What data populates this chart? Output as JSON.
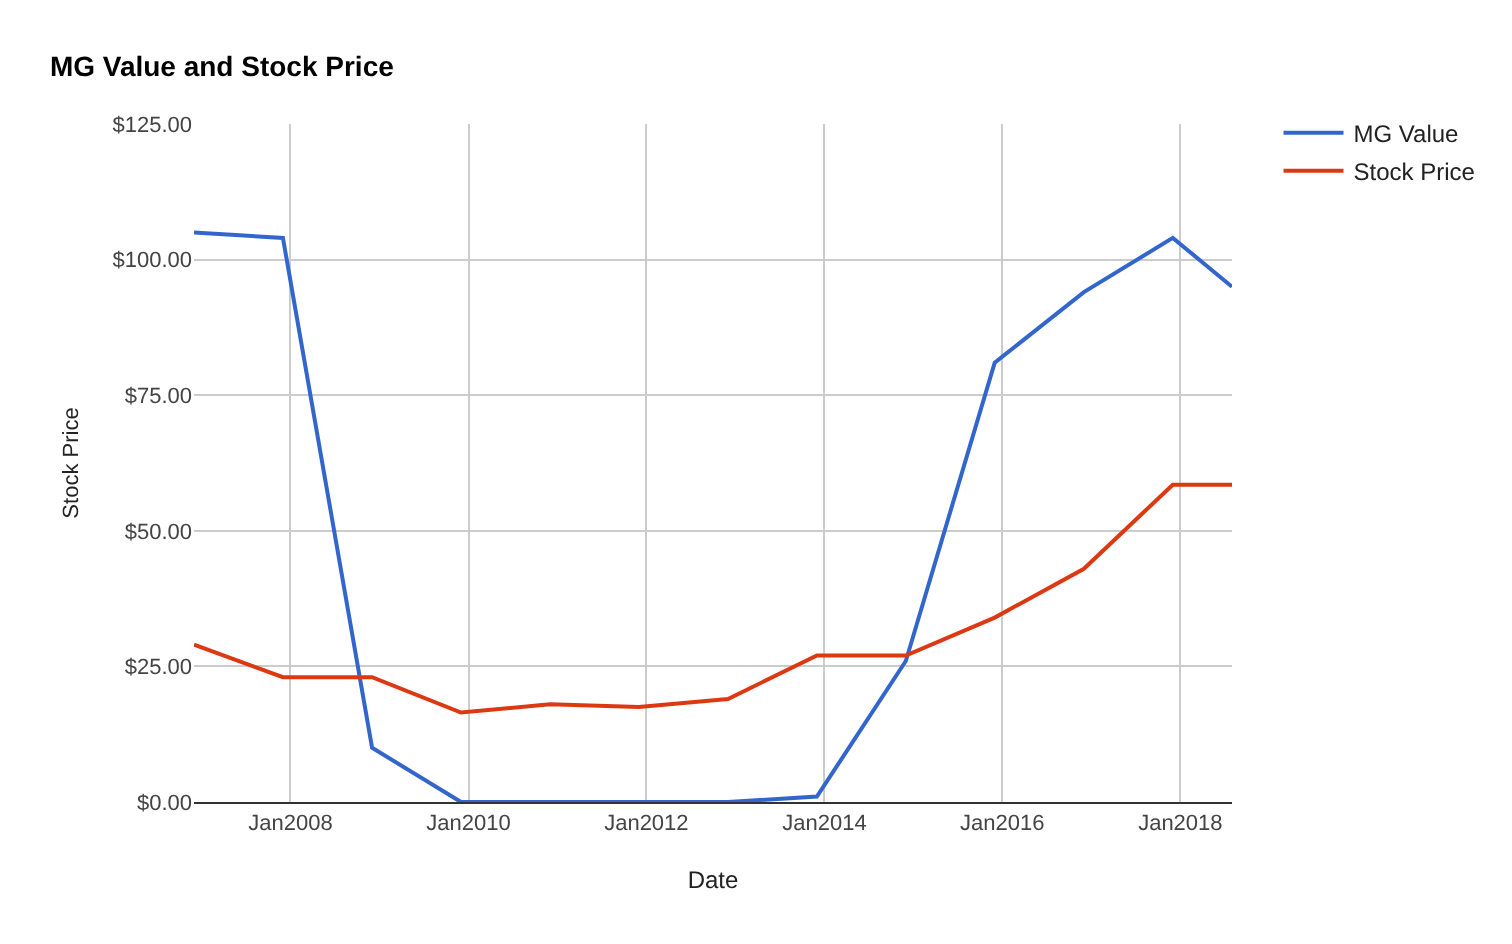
{
  "chart_data": {
    "type": "line",
    "title": "MG Value and Stock Price",
    "xlabel": "Date",
    "ylabel": "Stock Price",
    "x": [
      "2006-12-01",
      "2007-12-01",
      "2008-12-01",
      "2009-12-01",
      "2010-12-01",
      "2011-12-01",
      "2012-12-01",
      "2013-12-01",
      "2014-12-01",
      "2015-12-01",
      "2016-12-01",
      "2017-12-01",
      "2018-08-01"
    ],
    "series": [
      {
        "name": "MG Value",
        "color": "#3366cc",
        "values": [
          105,
          104,
          10,
          0,
          0,
          0,
          0,
          1,
          26,
          81,
          94,
          104,
          95
        ]
      },
      {
        "name": "Stock Price",
        "color": "#dc3912",
        "values": [
          29,
          23,
          23,
          16.5,
          18,
          17.5,
          19,
          27,
          27,
          34,
          43,
          58.5,
          58.5
        ]
      }
    ],
    "xlim": [
      "2006-12-01",
      "2018-08-01"
    ],
    "xticks": [
      {
        "value": "2008-01-01",
        "label": "Jan2008"
      },
      {
        "value": "2010-01-01",
        "label": "Jan2010"
      },
      {
        "value": "2012-01-01",
        "label": "Jan2012"
      },
      {
        "value": "2014-01-01",
        "label": "Jan2014"
      },
      {
        "value": "2016-01-01",
        "label": "Jan2016"
      },
      {
        "value": "2018-01-01",
        "label": "Jan2018"
      }
    ],
    "ylim": [
      0,
      125
    ],
    "yticks": [
      {
        "value": 0,
        "label": "$0.00"
      },
      {
        "value": 25,
        "label": "$25.00"
      },
      {
        "value": 50,
        "label": "$50.00"
      },
      {
        "value": 75,
        "label": "$75.00"
      },
      {
        "value": 100,
        "label": "$100.00"
      },
      {
        "value": 125,
        "label": "$125.00"
      }
    ],
    "grid": true,
    "legend": "right",
    "line_style": "solid"
  }
}
